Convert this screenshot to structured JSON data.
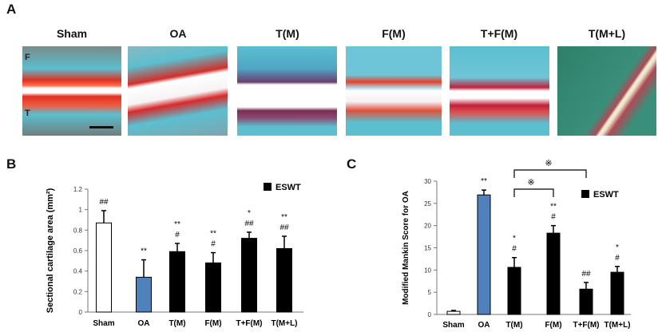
{
  "panel_a": {
    "letter": "A",
    "images": [
      {
        "label": "Sham",
        "top_mark": "F",
        "bottom_mark": "T"
      },
      {
        "label": "OA"
      },
      {
        "label": "T(M)"
      },
      {
        "label": "F(M)"
      },
      {
        "label": "T+F(M)"
      },
      {
        "label": "T(M+L)"
      }
    ]
  },
  "colors": {
    "sham": "#ffffff",
    "oa": "#4f81bd",
    "eswt": "#000000"
  },
  "chart_data": [
    {
      "panel": "B",
      "type": "bar",
      "ylabel": "Sectional cartilage area (mm²)",
      "ylim": [
        0,
        1.2
      ],
      "yticks": [
        "0",
        "0.2",
        "0.4",
        "0.6",
        "0.8",
        "1",
        "1.2"
      ],
      "categories": [
        "Sham",
        "OA",
        "T(M)",
        "F(M)",
        "T+F(M)",
        "T(M+L)"
      ],
      "values": [
        0.87,
        0.34,
        0.59,
        0.48,
        0.72,
        0.62
      ],
      "errors": [
        0.12,
        0.17,
        0.08,
        0.1,
        0.06,
        0.12
      ],
      "annotations": [
        [
          "##"
        ],
        [
          "**"
        ],
        [
          "**",
          "#"
        ],
        [
          "**",
          "#"
        ],
        [
          "*",
          "##"
        ],
        [
          "**",
          "##"
        ]
      ],
      "legend": {
        "label": "ESWT",
        "position": "top-right"
      }
    },
    {
      "panel": "C",
      "type": "bar",
      "ylabel": "Modified Mankin Score for OA",
      "ylim": [
        0,
        30
      ],
      "yticks": [
        "0",
        "5",
        "10",
        "15",
        "20",
        "25",
        "30"
      ],
      "categories": [
        "Sham",
        "OA",
        "T(M)",
        "F(M)",
        "T+F(M)",
        "T(M+L)"
      ],
      "values": [
        0.7,
        26.9,
        10.6,
        18.3,
        5.7,
        9.5
      ],
      "errors": [
        0.2,
        1.1,
        2.2,
        1.7,
        1.5,
        1.3
      ],
      "annotations": [
        [],
        [
          "**"
        ],
        [
          "*",
          "#"
        ],
        [
          "**",
          "#"
        ],
        [
          "##"
        ],
        [
          "*",
          "#"
        ]
      ],
      "brackets": [
        {
          "from": "T(M)",
          "to": "F(M)",
          "symbol": "※"
        },
        {
          "from": "T(M)",
          "to": "T+F(M)",
          "symbol": "※"
        }
      ],
      "legend": {
        "label": "ESWT",
        "position": "top-right"
      }
    }
  ]
}
